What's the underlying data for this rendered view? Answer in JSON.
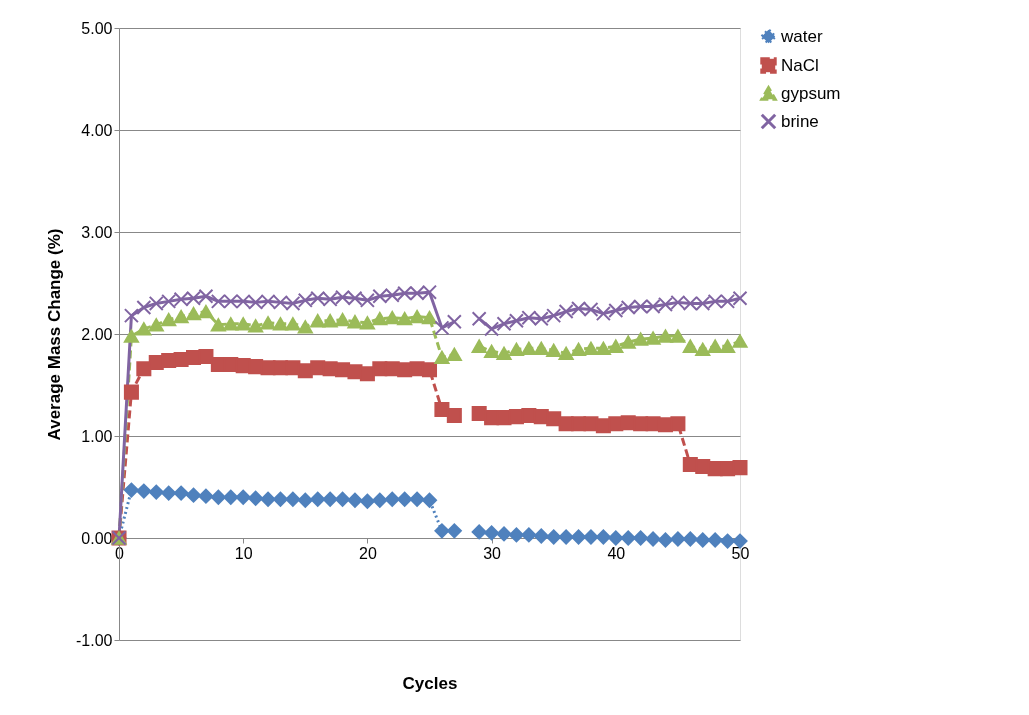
{
  "chart_data": {
    "type": "line",
    "xlabel": "Cycles",
    "ylabel": "Average Mass Change (%)",
    "x": [
      0,
      1,
      2,
      3,
      4,
      5,
      6,
      7,
      8,
      9,
      10,
      11,
      12,
      13,
      14,
      15,
      16,
      17,
      18,
      19,
      20,
      21,
      22,
      23,
      24,
      25,
      26,
      27,
      28,
      29,
      30,
      31,
      32,
      33,
      34,
      35,
      36,
      37,
      38,
      39,
      40,
      41,
      42,
      43,
      44,
      45,
      46,
      47,
      48,
      49,
      50
    ],
    "xlim": [
      0,
      50
    ],
    "xticks": [
      0,
      10,
      20,
      30,
      40,
      50
    ],
    "ylim": [
      -1,
      5
    ],
    "yticks": [
      {
        "value": -1,
        "label": "-1.00"
      },
      {
        "value": 0,
        "label": "0.00"
      },
      {
        "value": 1,
        "label": "1.00"
      },
      {
        "value": 2,
        "label": "2.00"
      },
      {
        "value": 3,
        "label": "3.00"
      },
      {
        "value": 4,
        "label": "4.00"
      },
      {
        "value": 5,
        "label": "5.00"
      }
    ],
    "grid": "y",
    "legend": "right",
    "series": [
      {
        "name": "water",
        "color": "#4f81bd",
        "marker": "diamond",
        "line_style": "dotted",
        "values": [
          0,
          0.47,
          0.46,
          0.45,
          0.44,
          0.44,
          0.42,
          0.41,
          0.4,
          0.4,
          0.4,
          0.39,
          0.38,
          0.38,
          0.38,
          0.37,
          0.38,
          0.38,
          0.38,
          0.37,
          0.36,
          0.37,
          0.38,
          0.38,
          0.38,
          0.37,
          0.07,
          0.07,
          null,
          0.06,
          0.05,
          0.04,
          0.03,
          0.03,
          0.02,
          0.01,
          0.01,
          0.01,
          0.01,
          0.01,
          0.0,
          0.0,
          0.0,
          -0.01,
          -0.02,
          -0.01,
          -0.01,
          -0.02,
          -0.02,
          -0.03,
          -0.03
        ]
      },
      {
        "name": "NaCl",
        "color": "#c0504d",
        "marker": "square",
        "line_style": "dashed",
        "values": [
          0,
          1.43,
          1.66,
          1.72,
          1.74,
          1.75,
          1.77,
          1.78,
          1.7,
          1.7,
          1.69,
          1.68,
          1.67,
          1.67,
          1.67,
          1.64,
          1.67,
          1.66,
          1.65,
          1.63,
          1.61,
          1.66,
          1.66,
          1.65,
          1.66,
          1.65,
          1.26,
          1.2,
          null,
          1.22,
          1.18,
          1.18,
          1.19,
          1.2,
          1.19,
          1.17,
          1.12,
          1.12,
          1.12,
          1.1,
          1.12,
          1.13,
          1.12,
          1.12,
          1.11,
          1.12,
          0.72,
          0.7,
          0.68,
          0.68,
          0.69
        ]
      },
      {
        "name": "gypsum",
        "color": "#9bbb59",
        "marker": "triangle",
        "line_style": "dashed",
        "values": [
          0,
          1.98,
          2.05,
          2.09,
          2.14,
          2.17,
          2.2,
          2.22,
          2.09,
          2.1,
          2.1,
          2.08,
          2.11,
          2.1,
          2.1,
          2.07,
          2.13,
          2.13,
          2.14,
          2.12,
          2.11,
          2.15,
          2.16,
          2.15,
          2.17,
          2.16,
          1.77,
          1.8,
          null,
          1.88,
          1.83,
          1.81,
          1.85,
          1.86,
          1.86,
          1.84,
          1.81,
          1.85,
          1.86,
          1.86,
          1.88,
          1.92,
          1.95,
          1.96,
          1.98,
          1.98,
          1.88,
          1.85,
          1.88,
          1.88,
          1.93
        ]
      },
      {
        "name": "brine",
        "color": "#8064a2",
        "marker": "cross",
        "line_style": "solid",
        "values": [
          0,
          2.18,
          2.26,
          2.3,
          2.32,
          2.34,
          2.35,
          2.37,
          2.32,
          2.32,
          2.32,
          2.31,
          2.32,
          2.31,
          2.3,
          2.33,
          2.35,
          2.34,
          2.36,
          2.35,
          2.33,
          2.37,
          2.38,
          2.4,
          2.4,
          2.41,
          2.06,
          2.12,
          null,
          2.15,
          2.05,
          2.1,
          2.13,
          2.16,
          2.15,
          2.18,
          2.22,
          2.25,
          2.24,
          2.2,
          2.23,
          2.26,
          2.27,
          2.27,
          2.29,
          2.31,
          2.3,
          2.3,
          2.32,
          2.32,
          2.35
        ]
      }
    ]
  }
}
